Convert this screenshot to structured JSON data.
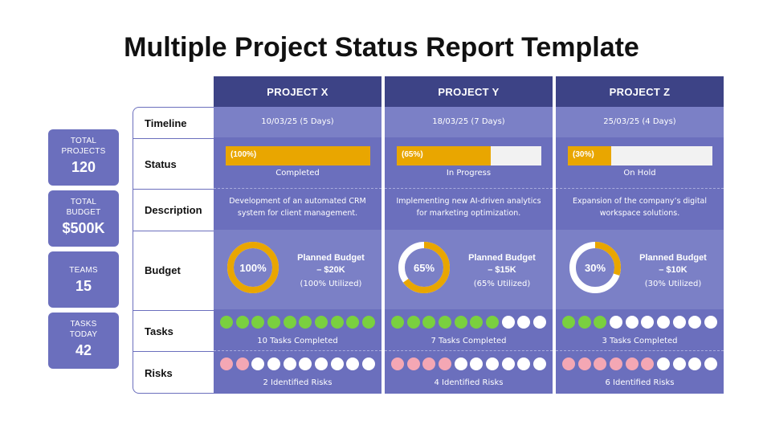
{
  "title": "Multiple Project Status Report Template",
  "stats": [
    {
      "label_line1": "TOTAL",
      "label_line2": "PROJECTS",
      "value": "120"
    },
    {
      "label_line1": "TOTAL",
      "label_line2": "BUDGET",
      "value": "$500K"
    },
    {
      "label_line1": "TEAMS",
      "label_line2": "",
      "value": "15"
    },
    {
      "label_line1": "TASKS",
      "label_line2": "TODAY",
      "value": "42"
    }
  ],
  "row_labels": {
    "timeline": "Timeline",
    "status": "Status",
    "description": "Description",
    "budget": "Budget",
    "tasks": "Tasks",
    "risks": "Risks"
  },
  "colors": {
    "header": "#3d4386",
    "band_light": "#7b80c6",
    "band_dark": "#6b6fbd",
    "progress": "#e9a600",
    "task_done": "#7ad03f",
    "risk": "#f4a7b4"
  },
  "projects": [
    {
      "name": "PROJECT X",
      "timeline": "10/03/25 (5 Days)",
      "status_pct_label": "(100%)",
      "status_progress": 100,
      "status_text": "Completed",
      "description": "Development of an automated CRM system for client management.",
      "budget_pct_label": "100%",
      "budget_utilized": 100,
      "budget_title_line1": "Planned Budget",
      "budget_title_line2": "– $20K",
      "budget_util_text": "(100% Utilized)",
      "tasks_completed": 10,
      "tasks_total": 10,
      "tasks_text": "10 Tasks Completed",
      "risks_identified": 2,
      "risks_total": 10,
      "risks_text": "2 Identified Risks"
    },
    {
      "name": "PROJECT Y",
      "timeline": "18/03/25 (7 Days)",
      "status_pct_label": "(65%)",
      "status_progress": 65,
      "status_text": "In Progress",
      "description": "Implementing new AI-driven analytics for marketing optimization.",
      "budget_pct_label": "65%",
      "budget_utilized": 65,
      "budget_title_line1": "Planned Budget",
      "budget_title_line2": "– $15K",
      "budget_util_text": "(65% Utilized)",
      "tasks_completed": 7,
      "tasks_total": 10,
      "tasks_text": "7 Tasks Completed",
      "risks_identified": 4,
      "risks_total": 10,
      "risks_text": "4 Identified Risks"
    },
    {
      "name": "PROJECT Z",
      "timeline": "25/03/25 (4 Days)",
      "status_pct_label": "(30%)",
      "status_progress": 30,
      "status_text": "On Hold",
      "description": "Expansion of the company’s digital workspace solutions.",
      "budget_pct_label": "30%",
      "budget_utilized": 30,
      "budget_title_line1": "Planned Budget",
      "budget_title_line2": "– $10K",
      "budget_util_text": "(30% Utilized)",
      "tasks_completed": 3,
      "tasks_total": 10,
      "tasks_text": "3 Tasks Completed",
      "risks_identified": 6,
      "risks_total": 10,
      "risks_text": "6 Identified Risks"
    }
  ]
}
